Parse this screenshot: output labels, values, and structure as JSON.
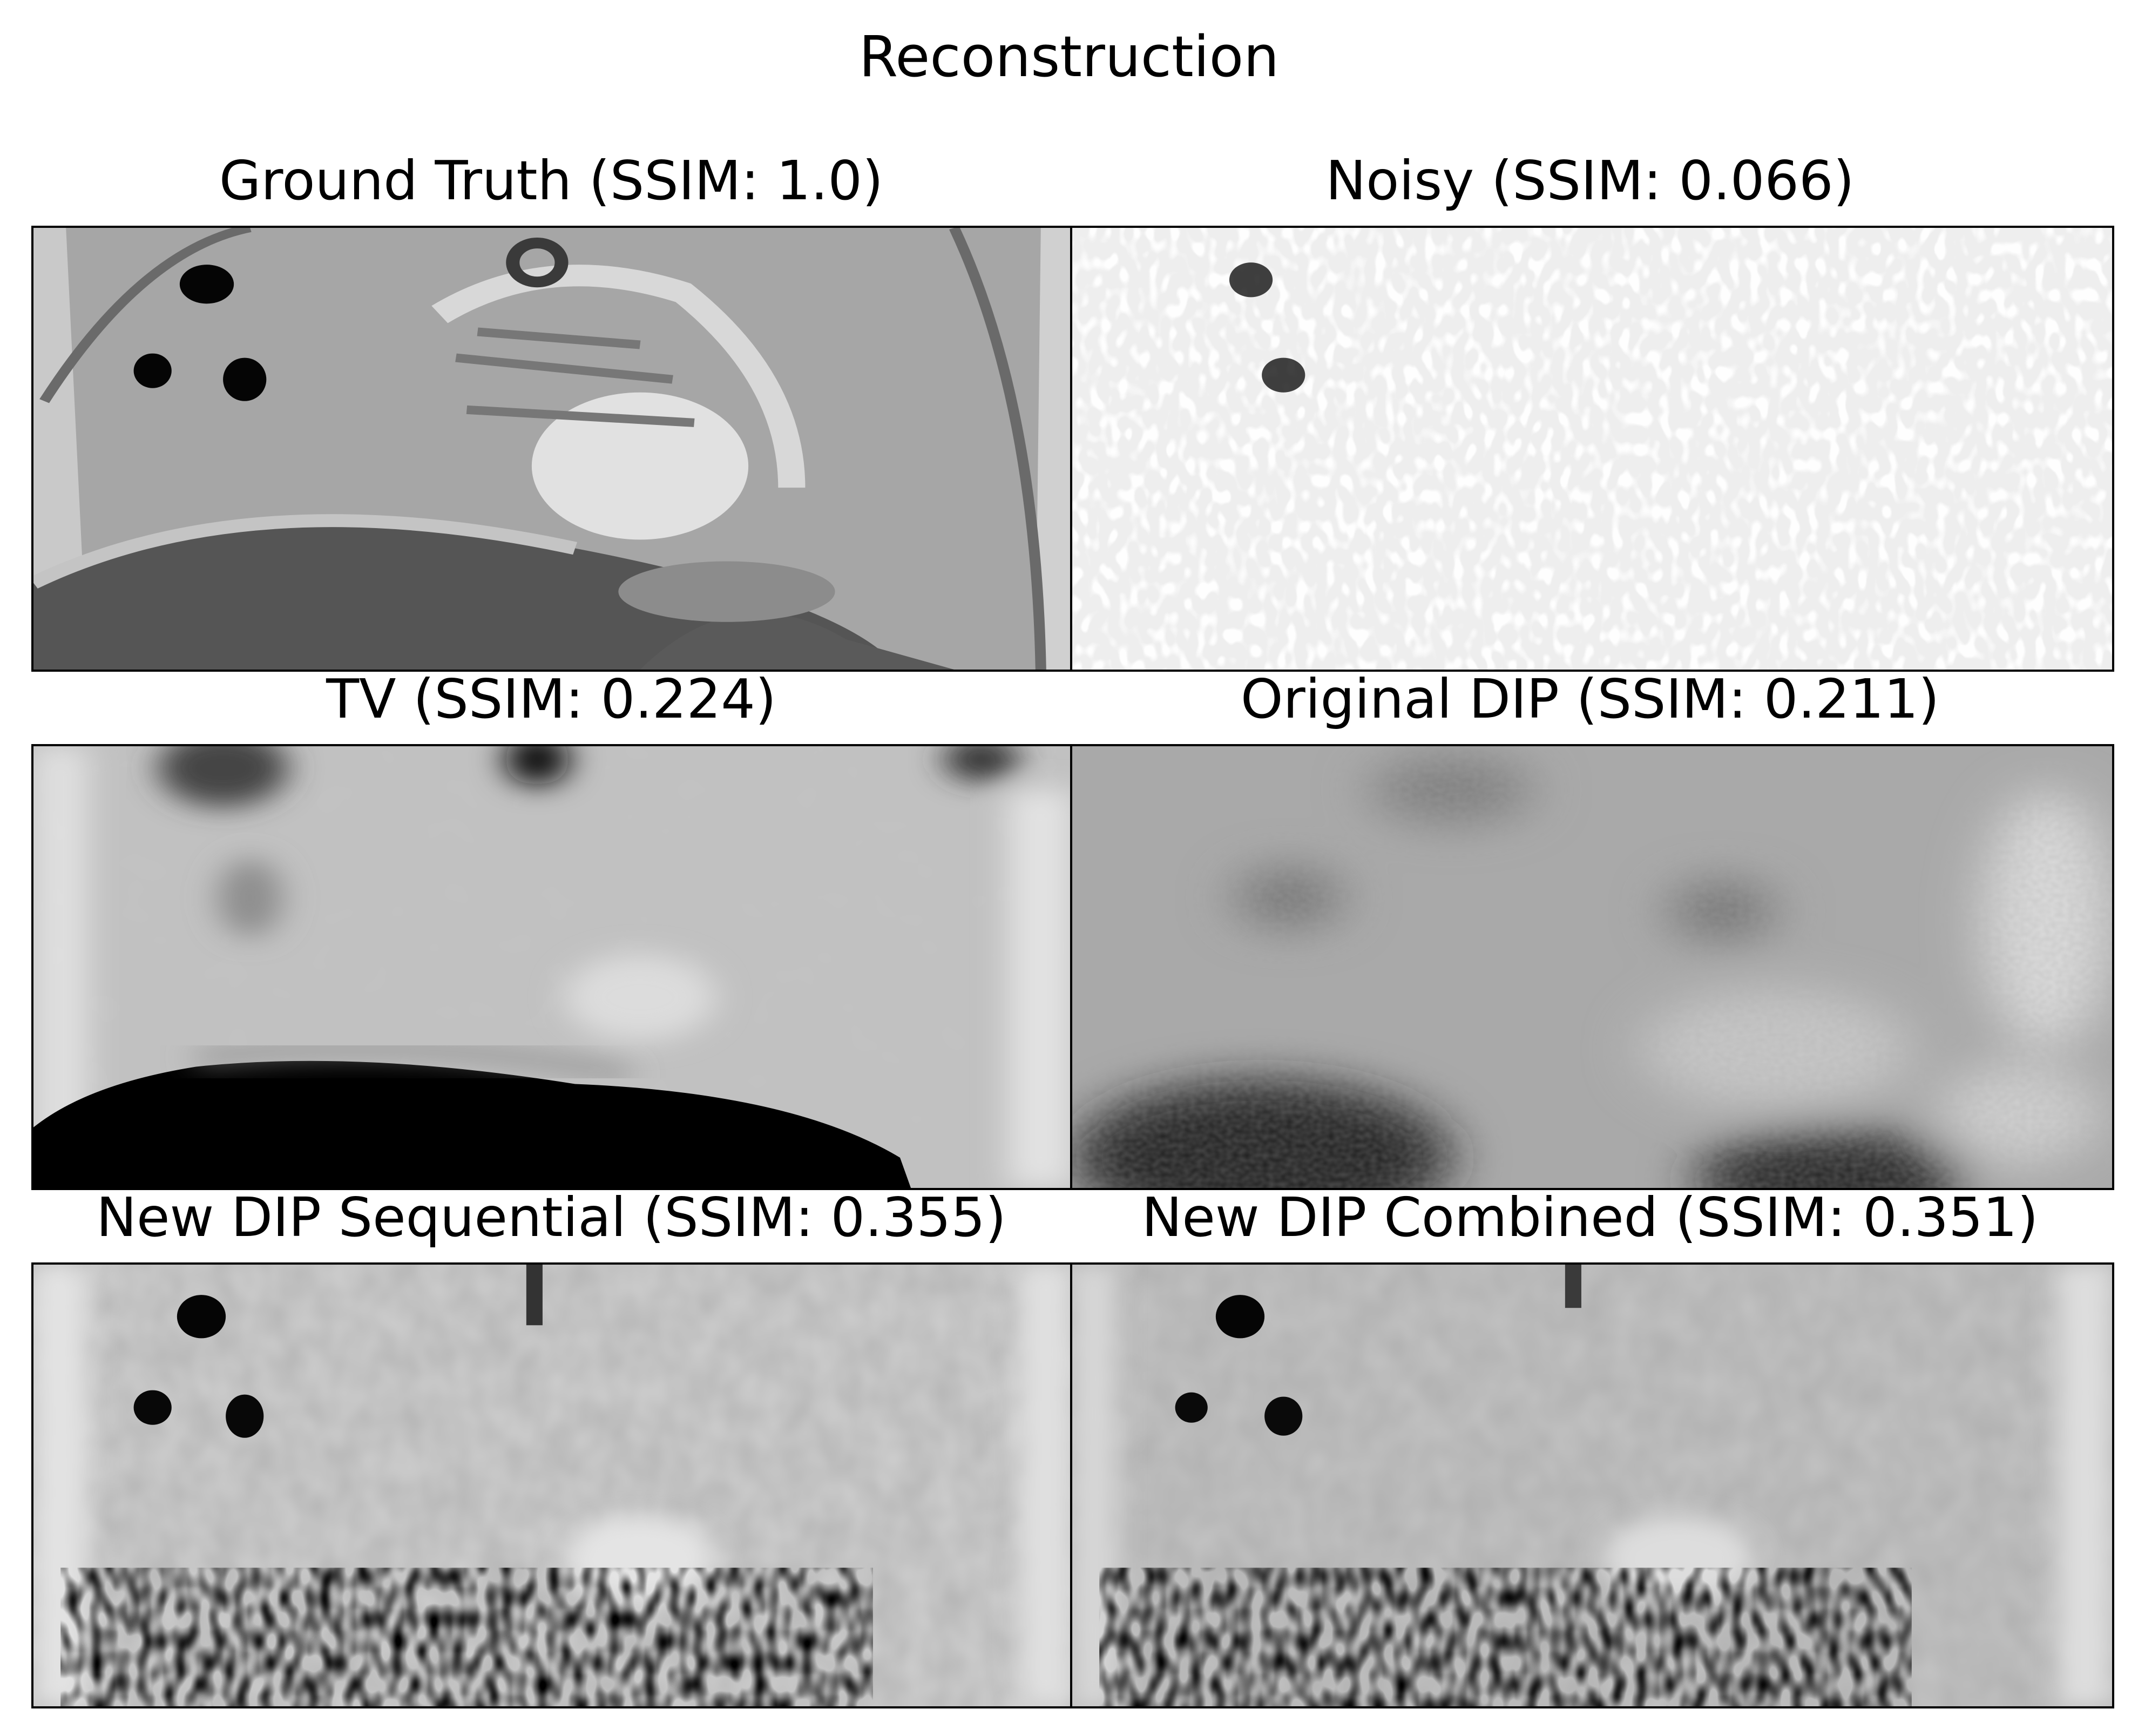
{
  "figure": {
    "title": "Reconstruction",
    "panels": [
      {
        "id": "gt",
        "title": "Ground Truth (SSIM: 1.0)",
        "ssim": 1.0
      },
      {
        "id": "noisy",
        "title": "Noisy (SSIM: 0.066)",
        "ssim": 0.066
      },
      {
        "id": "tv",
        "title": "TV (SSIM: 0.224)",
        "ssim": 0.224
      },
      {
        "id": "dip",
        "title": "Original DIP (SSIM: 0.211)",
        "ssim": 0.211
      },
      {
        "id": "seq",
        "title": "New DIP Sequential (SSIM: 0.355)",
        "ssim": 0.355
      },
      {
        "id": "comb",
        "title": "New DIP Combined (SSIM: 0.351)",
        "ssim": 0.351
      }
    ],
    "colormap": "gray"
  }
}
